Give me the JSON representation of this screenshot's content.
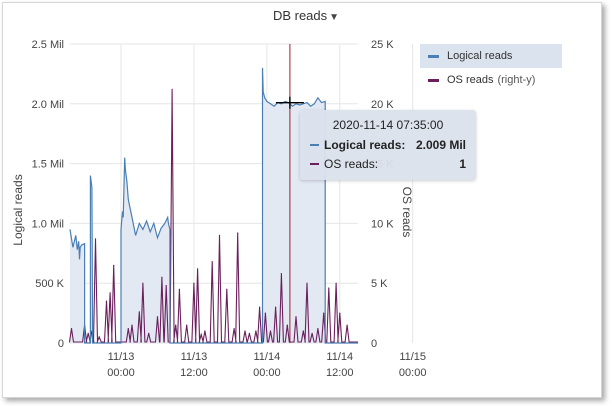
{
  "header": {
    "title": "DB reads",
    "dropdown_icon": "caret-down-icon"
  },
  "colors": {
    "logical": "#4a7fb5",
    "os": "#6b1f5c",
    "cursor": "#a01f2a",
    "area": "#e3e9f3"
  },
  "legend": {
    "items": [
      {
        "label": "Logical reads",
        "suffix": ""
      },
      {
        "label": "OS reads",
        "suffix": "(right-y)"
      }
    ]
  },
  "tooltip": {
    "title": "2020-11-14 07:35:00",
    "rows": [
      {
        "label": "Logical reads:",
        "value": "2.009 Mil"
      },
      {
        "label": "OS reads:",
        "value": "1"
      }
    ]
  },
  "chart_data": {
    "type": "line",
    "title": "DB reads",
    "ylabel": "Logical reads",
    "y2label": "OS reads",
    "yticks": [
      "0",
      "500 K",
      "1.0 Mil",
      "1.5 Mil",
      "2.0 Mil",
      "2.5 Mil"
    ],
    "y2ticks": [
      "0",
      "5 K",
      "10 K",
      "15 K",
      "20 K",
      "25 K"
    ],
    "xticks": [
      {
        "date": "11/13",
        "time": "00:00"
      },
      {
        "date": "11/13",
        "time": "12:00"
      },
      {
        "date": "11/14",
        "time": "00:00"
      },
      {
        "date": "11/14",
        "time": "12:00"
      },
      {
        "date": "11/15",
        "time": "00:00"
      }
    ],
    "xlim": [
      -2.7,
      1.25
    ],
    "ylim": [
      0,
      2500000
    ],
    "y2lim": [
      0,
      25000
    ],
    "cursor_x": 0.316,
    "series": [
      {
        "name": "Logical reads",
        "x": [
          -2.7,
          -2.66,
          -2.62,
          -2.6,
          -2.58,
          -2.57,
          -2.56,
          -2.54,
          -2.5,
          -2.5,
          -2.45,
          -2.42,
          -2.42,
          -2.4,
          -2.39,
          -2.35,
          -2.3,
          -2.25,
          -2.2,
          -2.15,
          -2.1,
          -2.05,
          -2.0,
          -2.0,
          -1.98,
          -1.97,
          -1.95,
          -1.94,
          -1.92,
          -1.9,
          -1.85,
          -1.8,
          -1.75,
          -1.7,
          -1.65,
          -1.6,
          -1.55,
          -1.5,
          -1.45,
          -1.4,
          -1.36,
          -1.35,
          -1.33,
          -1.33,
          -1.32,
          -1.32,
          -1.3,
          -1.2,
          -1.1,
          -1.0,
          -0.9,
          -0.5,
          -0.3,
          -0.2,
          -0.15,
          -0.1,
          -0.06,
          -0.06,
          -0.05,
          -0.03,
          0.0,
          0.05,
          0.1,
          0.15,
          0.2,
          0.25,
          0.3,
          0.35,
          0.4,
          0.45,
          0.5,
          0.55,
          0.6,
          0.65,
          0.7,
          0.75,
          0.8,
          0.8,
          0.85,
          1.25
        ],
        "y": [
          950000,
          800000,
          900000,
          780000,
          850000,
          700000,
          800000,
          820000,
          830000,
          0,
          0,
          0,
          1400000,
          1300000,
          0,
          0,
          0,
          0,
          0,
          0,
          0,
          0,
          0,
          950000,
          1100000,
          1050000,
          1550000,
          1450000,
          1350000,
          1200000,
          1050000,
          900000,
          1000000,
          950000,
          1020000,
          930000,
          1000000,
          880000,
          960000,
          1000000,
          1050000,
          1000000,
          950000,
          0,
          0,
          0,
          0,
          0,
          0,
          0,
          0,
          0,
          0,
          0,
          0,
          0,
          0,
          2300000,
          2100000,
          2050000,
          2020000,
          2000000,
          1980000,
          2010000,
          2000000,
          2020000,
          2009000,
          1980000,
          2000000,
          1990000,
          2000000,
          2010000,
          1980000,
          2000000,
          2050000,
          2010000,
          2020000,
          0,
          0,
          0
        ]
      },
      {
        "name": "OS reads",
        "x": [
          -2.68,
          -2.5,
          -2.45,
          -2.4,
          -2.35,
          -2.3,
          -2.2,
          -2.15,
          -2.1,
          -1.9,
          -1.85,
          -1.75,
          -1.7,
          -1.62,
          -1.5,
          -1.44,
          -1.38,
          -1.3,
          -1.25,
          -1.2,
          -1.1,
          -1.0,
          -0.95,
          -0.9,
          -0.85,
          -0.75,
          -0.65,
          -0.55,
          -0.45,
          -0.4,
          -0.3,
          -0.24,
          -0.15,
          -0.1,
          -0.02,
          0.05,
          0.12,
          0.2,
          0.28,
          0.4,
          0.5,
          0.55,
          0.62,
          0.7,
          0.78,
          0.85,
          0.95,
          1.0,
          1.1
        ],
        "y": [
          1200,
          1500,
          800,
          1000,
          8700,
          500,
          3500,
          4200,
          6500,
          1200,
          1500,
          2600,
          5000,
          800,
          2200,
          5500,
          4800,
          21200,
          1500,
          4500,
          1500,
          5000,
          6200,
          700,
          1000,
          6800,
          9000,
          4500,
          1200,
          9200,
          1000,
          800,
          1000,
          3000,
          2500,
          1000,
          3000,
          5800,
          1500,
          2200,
          1000,
          5000,
          800,
          1200,
          2500,
          4600,
          5000,
          2500,
          1500
        ]
      }
    ]
  }
}
